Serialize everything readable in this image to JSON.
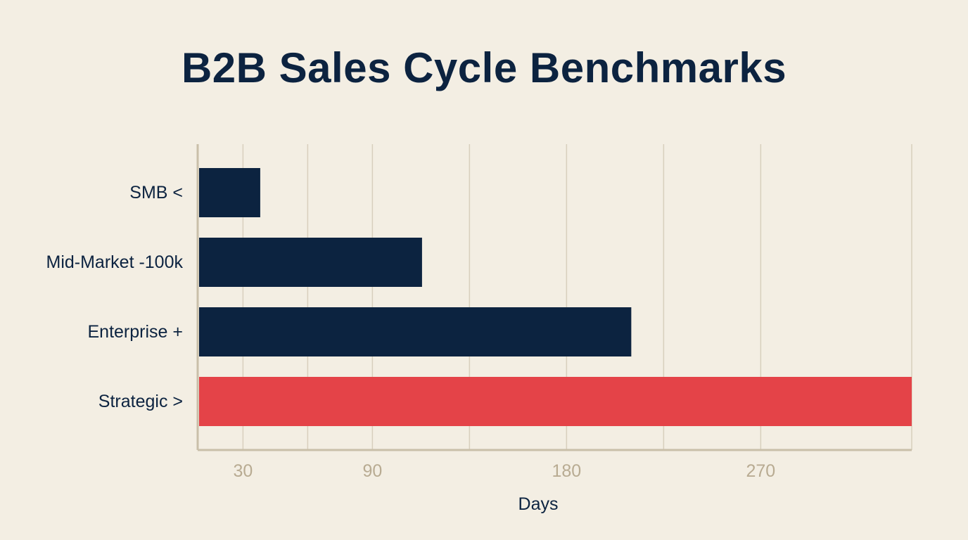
{
  "title": "B2B Sales Cycle Benchmarks",
  "chart_data": {
    "type": "bar",
    "orientation": "horizontal",
    "title": "B2B Sales Cycle Benchmarks",
    "xlabel": "Days",
    "ylabel": "",
    "categories": [
      "SMB <",
      "Mid-Market -100k",
      "Enterprise +",
      "Strategic >"
    ],
    "values": [
      38,
      113,
      210,
      340
    ],
    "colors": [
      "#0c2340",
      "#0c2340",
      "#0c2340",
      "#e44348"
    ],
    "xticks": [
      30,
      90,
      180,
      270
    ],
    "xlim": [
      9,
      340
    ],
    "grid": true,
    "legend": "none"
  },
  "colors": {
    "background": "#f3eee3",
    "bar": "#0c2340",
    "highlight": "#e44348",
    "grid": "#d8cfbd",
    "axis": "#c9bfa9",
    "tick_label": "#b8ab92",
    "text": "#0c2340"
  }
}
